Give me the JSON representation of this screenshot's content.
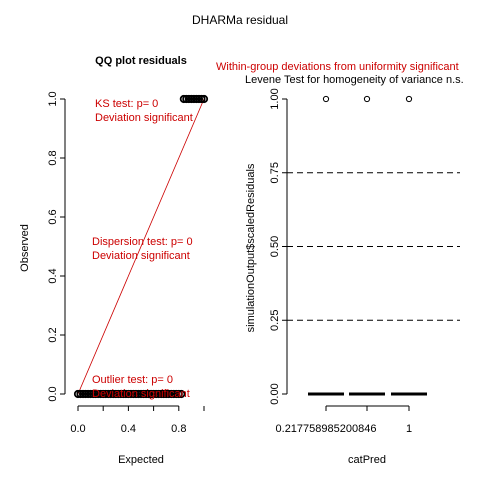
{
  "figure": {
    "title": "DHARMa residual"
  },
  "chart_data": [
    {
      "type": "scatter",
      "title": "QQ plot residuals",
      "xlabel": "Expected",
      "ylabel": "Observed",
      "xlim": [
        0,
        1
      ],
      "ylim": [
        0,
        1
      ],
      "x_ticks": [
        0.0,
        0.4,
        0.8
      ],
      "x_tick_labels": [
        "0.0",
        "0.4",
        "0.8"
      ],
      "y_ticks": [
        0.0,
        0.2,
        0.4,
        0.6,
        0.8,
        1.0
      ],
      "y_tick_labels": [
        "0.0",
        "0.2",
        "0.4",
        "0.6",
        "0.8",
        "1.0"
      ],
      "reference_line": {
        "x": [
          0,
          1
        ],
        "y": [
          0,
          1
        ],
        "color": "#cc0000"
      },
      "series": [
        {
          "x": [
            0.0,
            0.02,
            0.04,
            0.06,
            0.08,
            0.1,
            0.12,
            0.14,
            0.16,
            0.18,
            0.2,
            0.22,
            0.24,
            0.26,
            0.28,
            0.3,
            0.32,
            0.34,
            0.36,
            0.38,
            0.4,
            0.42,
            0.44,
            0.46,
            0.48,
            0.5,
            0.52,
            0.54,
            0.56,
            0.58,
            0.6,
            0.62,
            0.64,
            0.66,
            0.68,
            0.7,
            0.72,
            0.74,
            0.76,
            0.78,
            0.8,
            0.82
          ],
          "y": [
            0,
            0,
            0,
            0,
            0,
            0,
            0,
            0,
            0,
            0,
            0,
            0,
            0,
            0,
            0,
            0,
            0,
            0,
            0,
            0,
            0,
            0,
            0,
            0,
            0,
            0,
            0,
            0,
            0,
            0,
            0,
            0,
            0,
            0,
            0,
            0,
            0,
            0,
            0,
            0,
            0,
            0
          ]
        },
        {
          "x": [
            0.84,
            0.86,
            0.88,
            0.9,
            0.92,
            0.94,
            0.96,
            0.98,
            1.0
          ],
          "y": [
            1,
            1,
            1,
            1,
            1,
            1,
            1,
            1,
            1
          ]
        }
      ],
      "annotations": [
        {
          "line1": "KS test: p= 0",
          "line2": "Deviation  significant",
          "color": "#cc0000"
        },
        {
          "line1": "Dispersion test: p= 0",
          "line2": "Deviation  significant",
          "color": "#cc0000"
        },
        {
          "line1": "Outlier test: p= 0",
          "line2": "Deviation  significant",
          "color": "#cc0000"
        }
      ]
    },
    {
      "type": "box",
      "title": "Within-group deviations from uniformity significant",
      "subtitle": "Levene Test for homogeneity of variance n.s.",
      "xlabel": "catPred",
      "ylabel": "simulationOutput$scaledResiduals",
      "categories": [
        "0.217758985200846",
        "",
        "1"
      ],
      "category_labels_shown": [
        "0.217758985200846",
        "1"
      ],
      "ylim": [
        0,
        1
      ],
      "y_ticks": [
        0.0,
        0.25,
        0.5,
        0.75,
        1.0
      ],
      "y_tick_labels": [
        "0.00",
        "0.25",
        "0.50",
        "0.75",
        "1.00"
      ],
      "reference_lines": [
        0.25,
        0.5,
        0.75
      ],
      "groups": [
        {
          "category_index": 0,
          "median": 0,
          "outliers": [
            1
          ]
        },
        {
          "category_index": 1,
          "median": 0,
          "outliers": [
            1
          ]
        },
        {
          "category_index": 2,
          "median": 0,
          "outliers": [
            1
          ]
        }
      ]
    }
  ]
}
